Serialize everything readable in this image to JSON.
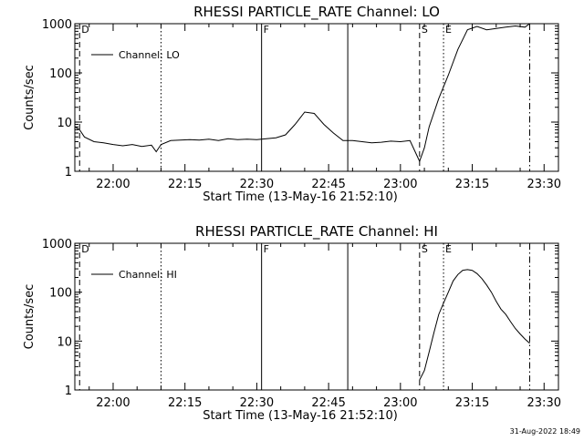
{
  "footer": {
    "timestamp": "31-Aug-2022 18:49"
  },
  "chart_data": [
    {
      "type": "line",
      "title": "RHESSI PARTICLE_RATE Channel: LO",
      "xlabel": "Start Time (13-May-16 21:52:10)",
      "ylabel": "Counts/sec",
      "ylog": true,
      "xlim": [
        "21:52",
        "23:33"
      ],
      "ylim": [
        1,
        1000
      ],
      "xticks": [
        "22:00",
        "22:15",
        "22:30",
        "22:45",
        "23:00",
        "23:15",
        "23:30"
      ],
      "yticks": [
        "1",
        "10",
        "100",
        "1000"
      ],
      "legend": {
        "position": "top-left",
        "label": "Channel: LO"
      },
      "markers": [
        {
          "time": "21:53",
          "style": "dashed",
          "label": "D"
        },
        {
          "time": "22:10",
          "style": "dotted",
          "label": ""
        },
        {
          "time": "22:31",
          "style": "solid",
          "label": "F"
        },
        {
          "time": "22:49",
          "style": "solid",
          "label": ""
        },
        {
          "time": "23:04",
          "style": "dashed",
          "label": "S"
        },
        {
          "time": "23:09",
          "style": "dotted",
          "label": "E"
        },
        {
          "time": "23:27",
          "style": "dashdot",
          "label": ""
        }
      ],
      "series": [
        {
          "x": [
            "21:52",
            "21:53",
            "21:54",
            "21:56",
            "21:58",
            "22:00",
            "22:02",
            "22:04",
            "22:06",
            "22:08",
            "22:09",
            "22:10",
            "22:12",
            "22:14",
            "22:16",
            "22:18",
            "22:20",
            "22:22",
            "22:24",
            "22:26",
            "22:28",
            "22:30",
            "22:32",
            "22:34",
            "22:36",
            "22:38",
            "22:40",
            "22:42",
            "22:44",
            "22:46",
            "22:48",
            "22:50",
            "22:52",
            "22:54",
            "22:56",
            "22:58",
            "23:00",
            "23:02",
            "23:04",
            "23:05",
            "23:06",
            "23:08",
            "23:10",
            "23:12",
            "23:14",
            "23:16",
            "23:18",
            "23:20",
            "23:22",
            "23:24",
            "23:26",
            "23:27"
          ],
          "values": [
            8,
            7,
            5,
            4,
            3.8,
            3.5,
            3.3,
            3.5,
            3.2,
            3.4,
            2.5,
            3.5,
            4.2,
            4.3,
            4.4,
            4.3,
            4.5,
            4.2,
            4.6,
            4.4,
            4.5,
            4.4,
            4.6,
            4.8,
            5.5,
            9,
            16,
            15,
            9,
            6,
            4.2,
            4.2,
            4,
            3.8,
            3.9,
            4.1,
            4,
            4.2,
            1.6,
            3,
            8,
            30,
            90,
            300,
            750,
            880,
            750,
            800,
            850,
            900,
            850,
            1000
          ]
        }
      ]
    },
    {
      "type": "line",
      "title": "RHESSI PARTICLE_RATE Channel: HI",
      "xlabel": "Start Time (13-May-16 21:52:10)",
      "ylabel": "Counts/sec",
      "ylog": true,
      "xlim": [
        "21:52",
        "23:33"
      ],
      "ylim": [
        1,
        1000
      ],
      "xticks": [
        "22:00",
        "22:15",
        "22:30",
        "22:45",
        "23:00",
        "23:15",
        "23:30"
      ],
      "yticks": [
        "1",
        "10",
        "100",
        "1000"
      ],
      "legend": {
        "position": "top-left",
        "label": "Channel: HI"
      },
      "markers": [
        {
          "time": "21:53",
          "style": "dashed",
          "label": "D"
        },
        {
          "time": "22:10",
          "style": "dotted",
          "label": ""
        },
        {
          "time": "22:31",
          "style": "solid",
          "label": "F"
        },
        {
          "time": "22:49",
          "style": "solid",
          "label": ""
        },
        {
          "time": "23:04",
          "style": "dashed",
          "label": "S"
        },
        {
          "time": "23:09",
          "style": "dotted",
          "label": "E"
        },
        {
          "time": "23:27",
          "style": "dashdot",
          "label": ""
        }
      ],
      "series": [
        {
          "x": [
            "23:04",
            "23:05",
            "23:06",
            "23:07",
            "23:08",
            "23:09",
            "23:10",
            "23:11",
            "23:12",
            "23:13",
            "23:14",
            "23:15",
            "23:16",
            "23:17",
            "23:18",
            "23:19",
            "23:20",
            "23:21",
            "23:22",
            "23:23",
            "23:24",
            "23:25",
            "23:26",
            "23:27"
          ],
          "values": [
            1.6,
            2.5,
            6,
            15,
            35,
            60,
            100,
            170,
            230,
            280,
            290,
            280,
            240,
            190,
            140,
            100,
            65,
            45,
            35,
            25,
            18,
            14,
            11,
            9
          ]
        }
      ]
    }
  ]
}
